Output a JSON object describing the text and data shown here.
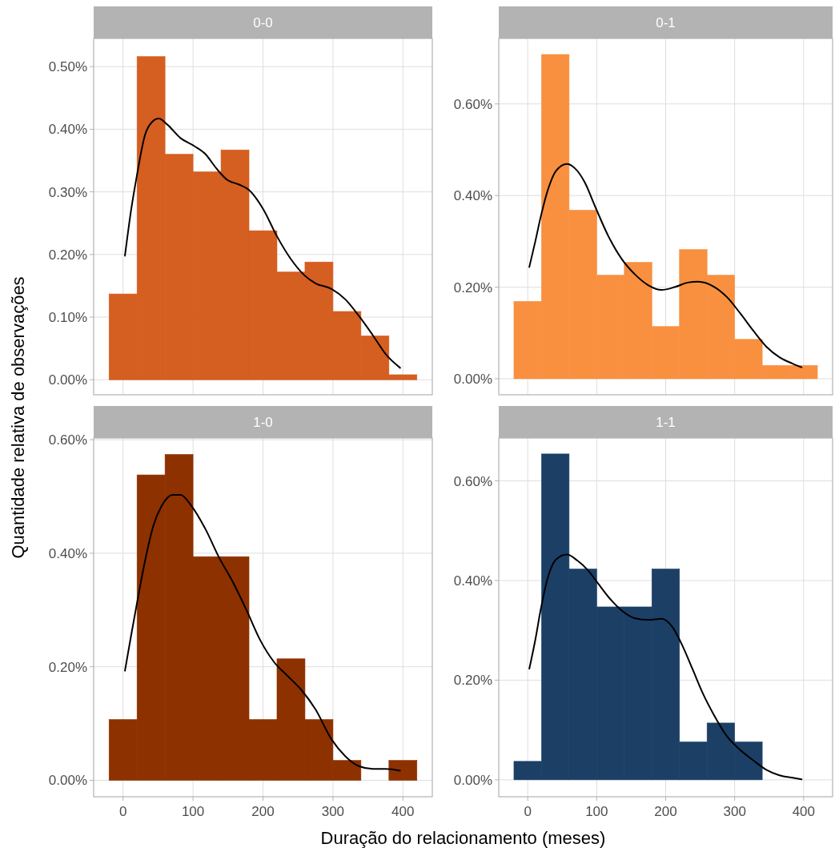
{
  "chart_data": [
    {
      "type": "histogram",
      "title": "0-0",
      "ylabel": "Quantidade relativa de observações",
      "xlim": [
        -42,
        442
      ],
      "xticks": [
        0,
        100,
        200,
        300,
        400
      ],
      "ylim": [
        -0.024,
        0.545
      ],
      "yticks": [
        {
          "value": 0,
          "label": "0.00%"
        },
        {
          "value": 0.1,
          "label": "0.10%"
        },
        {
          "value": 0.2,
          "label": "0.20%"
        },
        {
          "value": 0.3,
          "label": "0.30%"
        },
        {
          "value": 0.4,
          "label": "0.40%"
        },
        {
          "value": 0.5,
          "label": "0.50%"
        }
      ],
      "grid": true,
      "tick_labels": "y",
      "series": [
        {
          "type": "histogram",
          "color": "#d55e21",
          "bins": [
            -20,
            20,
            60,
            100,
            140,
            180,
            220,
            260,
            300,
            340,
            380,
            420
          ],
          "values": [
            0.137,
            0.516,
            0.36,
            0.332,
            0.367,
            0.238,
            0.172,
            0.188,
            0.109,
            0.07,
            0.008
          ]
        },
        {
          "type": "line",
          "color": "#000000",
          "x": [
            2.7,
            11.8,
            19.6,
            31.4,
            41,
            51,
            62.7,
            82,
            102,
            118,
            133,
            149,
            165,
            180,
            200,
            220,
            239,
            259,
            275,
            298,
            318,
            337,
            357,
            376,
            396
          ],
          "values": [
            0.198,
            0.273,
            0.325,
            0.391,
            0.411,
            0.417,
            0.408,
            0.386,
            0.373,
            0.36,
            0.338,
            0.319,
            0.312,
            0.303,
            0.273,
            0.229,
            0.194,
            0.167,
            0.154,
            0.145,
            0.128,
            0.102,
            0.071,
            0.04,
            0.019
          ]
        }
      ]
    },
    {
      "type": "histogram",
      "title": "0-1",
      "xlim": [
        -42,
        442
      ],
      "xticks": [
        0,
        100,
        200,
        300,
        400
      ],
      "ylim": [
        -0.035,
        0.743
      ],
      "yticks": [
        {
          "value": 0,
          "label": "0.00%"
        },
        {
          "value": 0.2,
          "label": "0.20%"
        },
        {
          "value": 0.4,
          "label": "0.40%"
        },
        {
          "value": 0.6,
          "label": "0.60%"
        }
      ],
      "grid": true,
      "tick_labels": "y",
      "series": [
        {
          "type": "histogram",
          "color": "#f89040",
          "bins": [
            -20,
            20,
            60,
            100,
            140,
            180,
            220,
            260,
            300,
            340,
            380,
            420
          ],
          "values": [
            0.169,
            0.708,
            0.368,
            0.226,
            0.254,
            0.114,
            0.282,
            0.226,
            0.086,
            0.029,
            0.029
          ]
        },
        {
          "type": "line",
          "color": "#000000",
          "x": [
            2.3,
            11,
            18.6,
            30,
            41,
            57,
            68,
            83,
            98,
            117,
            136,
            156,
            175,
            194,
            213,
            232,
            247,
            270,
            289,
            308,
            327,
            346,
            365,
            384,
            397
          ],
          "values": [
            0.244,
            0.3,
            0.352,
            0.416,
            0.454,
            0.469,
            0.46,
            0.428,
            0.375,
            0.311,
            0.262,
            0.227,
            0.204,
            0.194,
            0.2,
            0.21,
            0.212,
            0.201,
            0.178,
            0.143,
            0.105,
            0.07,
            0.047,
            0.033,
            0.025
          ]
        }
      ]
    },
    {
      "type": "histogram",
      "title": "1-0",
      "xlabel": "Duração do relacionamento (meses)",
      "xlim": [
        -42,
        442
      ],
      "xticks": [
        0,
        100,
        200,
        300,
        400
      ],
      "ylim": [
        -0.029,
        0.603
      ],
      "yticks": [
        {
          "value": 0,
          "label": "0.00%"
        },
        {
          "value": 0.2,
          "label": "0.20%"
        },
        {
          "value": 0.4,
          "label": "0.40%"
        },
        {
          "value": 0.6,
          "label": "0.60%"
        }
      ],
      "grid": true,
      "series": [
        {
          "type": "histogram",
          "color": "#8e3100",
          "bins": [
            -20,
            20,
            60,
            100,
            140,
            180,
            220,
            260,
            300,
            340,
            380,
            420
          ],
          "values": [
            0.107,
            0.538,
            0.574,
            0.394,
            0.394,
            0.107,
            0.214,
            0.107,
            0.035,
            0,
            0.035
          ]
        },
        {
          "type": "line",
          "color": "#000000",
          "x": [
            2.7,
            11.8,
            19.6,
            31,
            43,
            55,
            71,
            82,
            98,
            118,
            137,
            157,
            176,
            196,
            216,
            235,
            255,
            275,
            298,
            318,
            337,
            357,
            376,
            396
          ],
          "values": [
            0.193,
            0.257,
            0.31,
            0.384,
            0.447,
            0.483,
            0.503,
            0.503,
            0.483,
            0.442,
            0.393,
            0.349,
            0.301,
            0.247,
            0.208,
            0.184,
            0.159,
            0.125,
            0.072,
            0.042,
            0.025,
            0.02,
            0.02,
            0.017
          ]
        }
      ]
    },
    {
      "type": "histogram",
      "title": "1-1",
      "xlim": [
        -42,
        442
      ],
      "xticks": [
        0,
        100,
        200,
        300,
        400
      ],
      "ylim": [
        -0.034,
        0.686
      ],
      "yticks": [
        {
          "value": 0,
          "label": "0.00%"
        },
        {
          "value": 0.2,
          "label": "0.20%"
        },
        {
          "value": 0.4,
          "label": "0.40%"
        },
        {
          "value": 0.6,
          "label": "0.60%"
        }
      ],
      "grid": true,
      "series": [
        {
          "type": "histogram",
          "color": "#1c3f66",
          "bins": [
            -20,
            20,
            60,
            100,
            140,
            180,
            220,
            260,
            300,
            340
          ],
          "values": [
            0.037,
            0.654,
            0.423,
            0.347,
            0.347,
            0.423,
            0.076,
            0.114,
            0.076
          ]
        },
        {
          "type": "line",
          "color": "#000000",
          "x": [
            2.3,
            11,
            18.6,
            30,
            41,
            57,
            72,
            87,
            102,
            117,
            136,
            156,
            175,
            194,
            209,
            224,
            239,
            254,
            270,
            289,
            308,
            327,
            346,
            365,
            384,
            397
          ],
          "values": [
            0.223,
            0.281,
            0.34,
            0.41,
            0.442,
            0.452,
            0.44,
            0.421,
            0.394,
            0.367,
            0.34,
            0.324,
            0.321,
            0.323,
            0.308,
            0.27,
            0.222,
            0.173,
            0.13,
            0.087,
            0.06,
            0.039,
            0.02,
            0.009,
            0.004,
            0.001
          ]
        }
      ]
    }
  ]
}
